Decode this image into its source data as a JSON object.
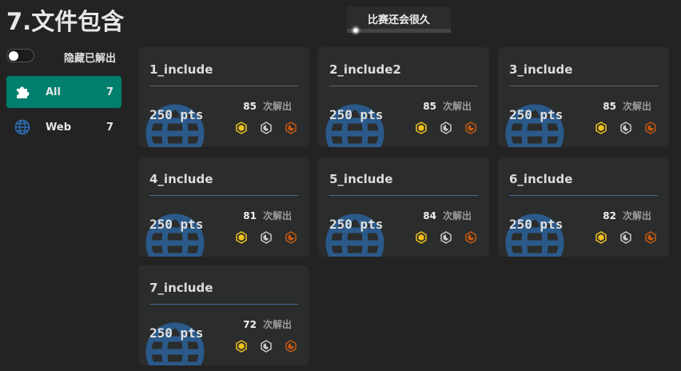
{
  "page_title": "7.文件包含",
  "timer": {
    "label": "比赛还会很久"
  },
  "filter": {
    "hide_solved_label": "隐藏已解出",
    "hide_solved_on": false
  },
  "categories": [
    {
      "label": "All",
      "count": "7",
      "icon": "puzzle-icon",
      "active": true
    },
    {
      "label": "Web",
      "count": "7",
      "icon": "globe-icon",
      "active": false
    }
  ],
  "solves_suffix": "次解出",
  "challenges": [
    {
      "name": "1_include",
      "points": "250 pts",
      "solves": "85"
    },
    {
      "name": "2_include2",
      "points": "250 pts",
      "solves": "85"
    },
    {
      "name": "3_include",
      "points": "250 pts",
      "solves": "85"
    },
    {
      "name": "4_include",
      "points": "250 pts",
      "solves": "81"
    },
    {
      "name": "5_include",
      "points": "250 pts",
      "solves": "84"
    },
    {
      "name": "6_include",
      "points": "250 pts",
      "solves": "82"
    },
    {
      "name": "7_include",
      "points": "250 pts",
      "solves": "72"
    }
  ],
  "colors": {
    "accent": "#007f6e",
    "gold": "#f1c21b",
    "silver": "#c8c8c8",
    "bronze": "#c65a12",
    "globe": "#2b5a8a"
  }
}
